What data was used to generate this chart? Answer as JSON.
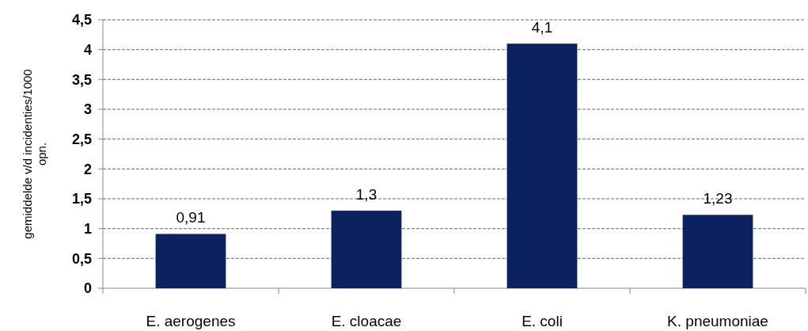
{
  "chart_data": {
    "type": "bar",
    "ylabel": "gemiddelde v/d incidenties/1000 opn.",
    "categories": [
      "E. aerogenes",
      "E. cloacae",
      "E. coli",
      "K. pneumoniae"
    ],
    "values": [
      0.91,
      1.3,
      4.1,
      1.23
    ],
    "value_labels": [
      "0,91",
      "1,3",
      "4,1",
      "1,23"
    ],
    "color": "#0c2160",
    "ylim": [
      0,
      4.5
    ],
    "yticks": [
      0,
      {
        "value": 0.5,
        "label": "0,5"
      },
      1,
      {
        "value": 1.5,
        "label": "1,5"
      },
      2,
      {
        "value": 2.5,
        "label": "2,5"
      },
      3,
      {
        "value": 3.5,
        "label": "3,5"
      },
      4,
      {
        "value": 4.5,
        "label": "4,5"
      }
    ],
    "grid": "y"
  }
}
